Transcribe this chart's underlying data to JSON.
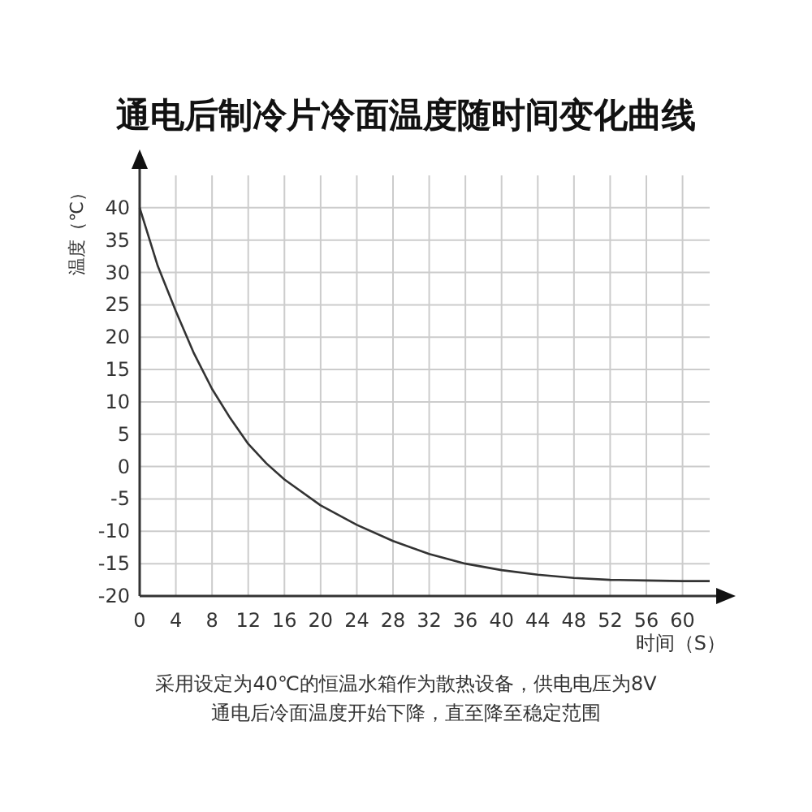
{
  "chart_data": {
    "type": "line",
    "title": "通电后制冷片冷面温度随时间变化曲线",
    "xlabel": "时间（S）",
    "ylabel": "温度（℃）",
    "x": [
      0,
      2,
      4,
      6,
      8,
      10,
      12,
      14,
      16,
      20,
      24,
      28,
      32,
      36,
      40,
      44,
      48,
      52,
      56,
      60,
      63
    ],
    "series": [
      {
        "color": "#333333",
        "values": [
          40,
          31,
          24,
          17.5,
          12,
          7.5,
          3.5,
          0.5,
          -2,
          -6,
          -9,
          -11.5,
          -13.5,
          -15,
          -16,
          -16.7,
          -17.2,
          -17.5,
          -17.6,
          -17.7,
          -17.7
        ]
      }
    ],
    "xlim": [
      0,
      63
    ],
    "ylim": [
      -20,
      45
    ],
    "xticks": [
      0,
      4,
      8,
      12,
      16,
      20,
      24,
      28,
      32,
      36,
      40,
      44,
      48,
      52,
      56,
      60
    ],
    "yticks": [
      -20,
      -15,
      -10,
      -5,
      0,
      5,
      10,
      15,
      20,
      25,
      30,
      35,
      40
    ],
    "grid": true,
    "marker": "none",
    "line_style": "solid",
    "annotations": [
      "采用设定为40℃的恒温水箱作为散热设备，供电电压为8V",
      "通电后冷面温度开始下降，直至降至稳定范围"
    ]
  }
}
